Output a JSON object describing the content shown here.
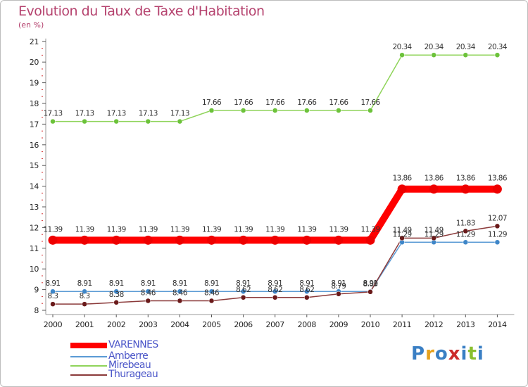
{
  "header": {
    "title": "Evolution du Taux de Taxe d'Habitation",
    "unit": "(en %)"
  },
  "chart_data": {
    "type": "line",
    "title": "Evolution du Taux de Taxe d'Habitation",
    "ylabel": "(en %)",
    "xlabel": "",
    "x": [
      "2000",
      "2001",
      "2002",
      "2003",
      "2004",
      "2005",
      "2006",
      "2007",
      "2008",
      "2009",
      "2010",
      "2011",
      "2012",
      "2013",
      "2014"
    ],
    "yticks": [
      8,
      9,
      10,
      11,
      12,
      13,
      14,
      15,
      16,
      17,
      18,
      19,
      20,
      21
    ],
    "ylim": [
      8,
      21
    ],
    "grid": false,
    "legend_position": "bottom-left",
    "series": [
      {
        "name": "VARENNES",
        "color": "#ff0000",
        "marker_color": "#ee0000",
        "emphasis": true,
        "values": [
          11.39,
          11.39,
          11.39,
          11.39,
          11.39,
          11.39,
          11.39,
          11.39,
          11.39,
          11.39,
          11.39,
          13.86,
          13.86,
          13.86,
          13.86
        ],
        "labels": [
          "11.39",
          "11.39",
          "11.39",
          "11.39",
          "11.39",
          "11.39",
          "11.39",
          "11.39",
          "11.39",
          "11.39",
          "11.39",
          "13.86",
          "13.86",
          "13.86",
          "13.86"
        ]
      },
      {
        "name": "Amberre",
        "color": "#5b9bd5",
        "marker_color": "#3e86c8",
        "emphasis": false,
        "values": [
          8.91,
          8.91,
          8.91,
          8.91,
          8.91,
          8.91,
          8.91,
          8.91,
          8.91,
          8.91,
          8.91,
          11.29,
          11.29,
          11.29,
          11.29
        ],
        "labels": [
          "8.91",
          "8.91",
          "8.91",
          "8.91",
          "8.91",
          "8.91",
          "8.91",
          "8.91",
          "8.91",
          "8.91",
          "8.91",
          "11.29",
          "11.29",
          "11.29",
          "11.29"
        ]
      },
      {
        "name": "Mirebeau",
        "color": "#8fd45a",
        "marker_color": "#6cc23a",
        "emphasis": false,
        "values": [
          17.13,
          17.13,
          17.13,
          17.13,
          17.13,
          17.66,
          17.66,
          17.66,
          17.66,
          17.66,
          17.66,
          20.34,
          20.34,
          20.34,
          20.34
        ],
        "labels": [
          "17.13",
          "17.13",
          "17.13",
          "17.13",
          "17.13",
          "17.66",
          "17.66",
          "17.66",
          "17.66",
          "17.66",
          "17.66",
          "20.34",
          "20.34",
          "20.34",
          "20.34"
        ]
      },
      {
        "name": "Thurageau",
        "color": "#8b3a3a",
        "marker_color": "#6a1a1a",
        "emphasis": false,
        "values": [
          8.3,
          8.3,
          8.38,
          8.46,
          8.46,
          8.46,
          8.62,
          8.62,
          8.62,
          8.79,
          8.89,
          11.49,
          11.49,
          11.83,
          12.07
        ],
        "labels": [
          "8.3",
          "8.3",
          "8.38",
          "8.46",
          "8.46",
          "8.46",
          "8.62",
          "8.62",
          "8.62",
          "8.79",
          "8.89",
          "11.49",
          "11.49",
          "11.83",
          "12.07"
        ]
      }
    ]
  },
  "legend": {
    "items": [
      "VARENNES",
      "Amberre",
      "Mirebeau",
      "Thurageau"
    ]
  },
  "logo": {
    "text": "Proxiti",
    "colors": [
      "#3a7fc4",
      "#e6a21e",
      "#3a7fc4",
      "#cc2a2a",
      "#3a7fc4",
      "#8abf2f",
      "#3a7fc4"
    ]
  }
}
